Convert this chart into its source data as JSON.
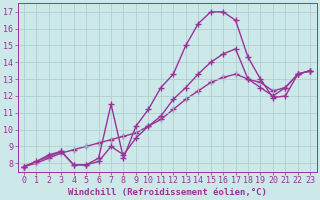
{
  "xlabel": "Windchill (Refroidissement éolien,°C)",
  "bg_color": "#cde8e8",
  "line_color": "#993399",
  "grid_color": "#aacccc",
  "x_min": -0.5,
  "x_max": 23.5,
  "y_min": 7.5,
  "y_max": 17.5,
  "y_ticks": [
    8,
    9,
    10,
    11,
    12,
    13,
    14,
    15,
    16,
    17
  ],
  "x_ticks": [
    0,
    1,
    2,
    3,
    4,
    5,
    6,
    7,
    8,
    9,
    10,
    11,
    12,
    13,
    14,
    15,
    16,
    17,
    18,
    19,
    20,
    21,
    22,
    23
  ],
  "line1_x": [
    0,
    1,
    2,
    3,
    4,
    5,
    6,
    7,
    8,
    9,
    10,
    11,
    12,
    13,
    14,
    15,
    16,
    17,
    18,
    19,
    20,
    21,
    22,
    23
  ],
  "line1_y": [
    7.8,
    8.1,
    8.5,
    8.7,
    7.9,
    7.9,
    8.3,
    11.5,
    8.3,
    10.2,
    11.2,
    12.5,
    13.3,
    15.0,
    16.3,
    17.0,
    17.0,
    16.5,
    14.3,
    13.0,
    11.9,
    12.0,
    13.3,
    13.5
  ],
  "line2_x": [
    0,
    3,
    4,
    5,
    6,
    7,
    8,
    9,
    10,
    11,
    12,
    13,
    14,
    15,
    16,
    17,
    18,
    19,
    20,
    21,
    22,
    23
  ],
  "line2_y": [
    7.8,
    8.7,
    7.9,
    7.9,
    8.1,
    9.0,
    8.5,
    9.5,
    10.2,
    10.8,
    11.8,
    12.5,
    13.3,
    14.0,
    14.5,
    14.8,
    13.0,
    12.5,
    12.0,
    12.5,
    13.3,
    13.5
  ],
  "line3_x": [
    0,
    1,
    2,
    3,
    4,
    5,
    6,
    7,
    8,
    9,
    10,
    11,
    12,
    13,
    14,
    15,
    16,
    17,
    18,
    19,
    20,
    21,
    22,
    23
  ],
  "line3_y": [
    7.8,
    8.0,
    8.3,
    8.6,
    8.8,
    9.0,
    9.2,
    9.4,
    9.6,
    9.8,
    10.2,
    10.6,
    11.2,
    11.8,
    12.3,
    12.8,
    13.1,
    13.3,
    13.0,
    12.8,
    12.3,
    12.5,
    13.3,
    13.5
  ],
  "marker": "+",
  "marker_size": 4,
  "linewidth": 1.0,
  "xlabel_fontsize": 6.5,
  "tick_fontsize": 6.0
}
